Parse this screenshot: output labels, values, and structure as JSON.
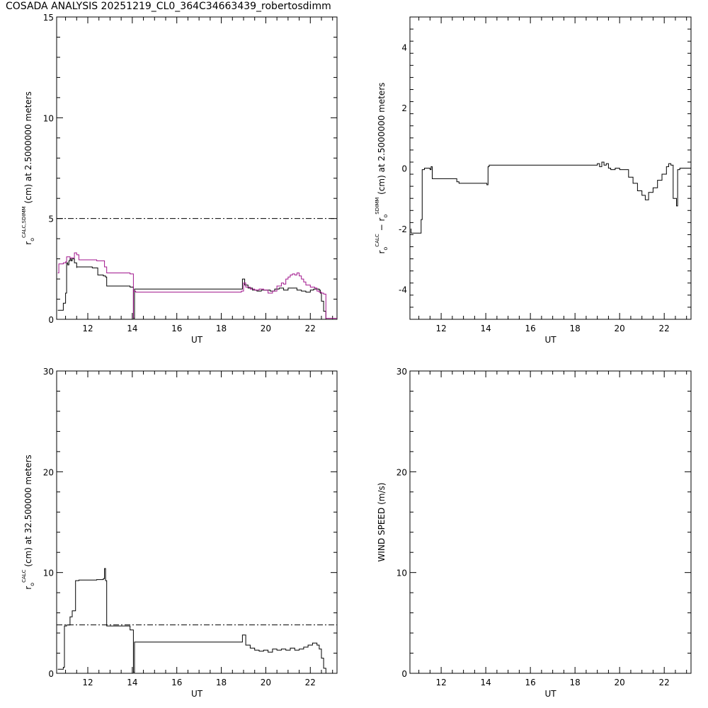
{
  "figure_title": "COSADA ANALYSIS  20251219_CL0_364C34663439_robertosdimm",
  "chart_data": [
    {
      "id": "r0-cl0-sdimm",
      "type": "line",
      "xlabel": "UT",
      "ylabel": "r₀^CALC,SDIMM (cm) at 2.5000000 meters",
      "ylabel_parts": {
        "pre": "r",
        "sub": "o",
        "sup": "CALC,SDIMM",
        "post": " (cm)  at  2.5000000 meters"
      },
      "xlim": [
        10.6,
        23.2
      ],
      "ylim": [
        0,
        15
      ],
      "xticks": [
        12,
        14,
        16,
        18,
        20,
        22
      ],
      "yticks": [
        0,
        5,
        10,
        15
      ],
      "reference_line": {
        "y": 5,
        "style": "dash-dot"
      },
      "series": [
        {
          "color": "#000000",
          "x": [
            10.65,
            10.9,
            10.9,
            11.0,
            11.0,
            11.05,
            11.1,
            11.15,
            11.2,
            11.25,
            11.3,
            11.4,
            11.5,
            11.5,
            12.2,
            12.45,
            12.7,
            12.8,
            12.85,
            13.9,
            14.05,
            14.05,
            14.1,
            18.9,
            18.95,
            19.05,
            19.2,
            19.4,
            19.6,
            19.8,
            20.0,
            20.2,
            20.4,
            20.6,
            20.8,
            21.0,
            21.2,
            21.4,
            21.6,
            21.8,
            22.0,
            22.15,
            22.3,
            22.4,
            22.45,
            22.5,
            22.6,
            22.7
          ],
          "y": [
            0.45,
            0.45,
            0.8,
            1.2,
            1.3,
            2.8,
            2.7,
            2.9,
            3.0,
            2.9,
            3.0,
            2.8,
            2.55,
            2.6,
            2.55,
            2.2,
            2.15,
            2.1,
            1.65,
            1.6,
            1.55,
            0.05,
            1.5,
            1.5,
            2.0,
            1.7,
            1.55,
            1.45,
            1.4,
            1.45,
            1.45,
            1.4,
            1.5,
            1.55,
            1.45,
            1.55,
            1.55,
            1.45,
            1.4,
            1.35,
            1.45,
            1.5,
            1.5,
            1.45,
            1.3,
            0.9,
            0.4,
            0.0
          ]
        },
        {
          "color": "#a0148c",
          "x": [
            10.65,
            10.7,
            10.9,
            11.0,
            11.05,
            11.2,
            11.4,
            11.5,
            11.6,
            12.4,
            12.75,
            12.85,
            13.9,
            14.05,
            14.05,
            14.15,
            18.9,
            19.0,
            19.1,
            19.3,
            19.5,
            19.7,
            19.9,
            20.1,
            20.3,
            20.5,
            20.7,
            20.8,
            20.9,
            21.0,
            21.1,
            21.2,
            21.3,
            21.4,
            21.5,
            21.6,
            21.7,
            21.8,
            22.0,
            22.2,
            22.3,
            22.4,
            22.5,
            22.6,
            22.7,
            23.2
          ],
          "y": [
            2.3,
            2.75,
            2.8,
            2.85,
            3.1,
            3.05,
            3.3,
            3.2,
            2.95,
            2.9,
            2.6,
            2.3,
            2.25,
            0.05,
            1.4,
            1.35,
            1.4,
            1.8,
            1.6,
            1.5,
            1.45,
            1.5,
            1.45,
            1.3,
            1.4,
            1.65,
            1.8,
            1.75,
            2.0,
            2.1,
            2.2,
            2.25,
            2.2,
            2.3,
            2.15,
            2.0,
            1.85,
            1.7,
            1.6,
            1.55,
            1.4,
            1.35,
            1.3,
            1.25,
            0.05,
            0.05
          ]
        }
      ]
    },
    {
      "id": "r0-diff",
      "type": "line",
      "xlabel": "UT",
      "ylabel": "r₀^CALC − r₀^SDIMM (cm) at 2.5000000 meters",
      "ylabel_parts": {
        "pre": "r",
        "sub": "o",
        "sup": "CALC",
        "mid": "  −  r",
        "sub2": "o",
        "sup2": "SDIMM",
        "post": " (cm) at 2.5000000 meters"
      },
      "xlim": [
        10.6,
        23.2
      ],
      "ylim": [
        -5,
        5
      ],
      "xticks": [
        12,
        14,
        16,
        18,
        20,
        22
      ],
      "yticks": [
        -4,
        -2,
        0,
        2,
        4
      ],
      "series": [
        {
          "color": "#000000",
          "x": [
            10.65,
            10.65,
            11.0,
            11.1,
            11.15,
            11.25,
            11.5,
            11.55,
            11.6,
            12.7,
            12.8,
            14.05,
            14.1,
            14.15,
            18.95,
            19.0,
            19.1,
            19.2,
            19.3,
            19.4,
            19.5,
            19.6,
            19.8,
            20.0,
            20.2,
            20.4,
            20.6,
            20.8,
            21.0,
            21.15,
            21.3,
            21.5,
            21.7,
            21.9,
            22.1,
            22.2,
            22.3,
            22.4,
            22.55,
            22.6,
            22.7,
            23.2
          ],
          "y": [
            -2.0,
            -2.15,
            -2.15,
            -1.7,
            -0.05,
            0.0,
            -0.05,
            0.05,
            -0.35,
            -0.45,
            -0.5,
            -0.55,
            0.05,
            0.1,
            0.1,
            0.15,
            0.05,
            0.2,
            0.1,
            0.15,
            0.0,
            -0.05,
            0.0,
            -0.05,
            -0.05,
            -0.3,
            -0.5,
            -0.75,
            -0.9,
            -1.05,
            -0.8,
            -0.65,
            -0.4,
            -0.2,
            0.05,
            0.15,
            0.1,
            -1.0,
            -1.25,
            -0.05,
            0.0,
            0.0
          ]
        }
      ]
    },
    {
      "id": "r0-calc-32",
      "type": "line",
      "xlabel": "UT",
      "ylabel": "r₀^CALC (cm) at 32.500000 meters",
      "ylabel_parts": {
        "pre": "r",
        "sub": "o",
        "sup": "CALC",
        "post": " (cm) at 32.500000 meters"
      },
      "xlim": [
        10.6,
        23.2
      ],
      "ylim": [
        0,
        30
      ],
      "xticks": [
        12,
        14,
        16,
        18,
        20,
        22
      ],
      "yticks": [
        0,
        10,
        20,
        30
      ],
      "reference_line": {
        "y": 4.8,
        "style": "dash-dot"
      },
      "series": [
        {
          "color": "#000000",
          "x": [
            10.65,
            10.9,
            10.95,
            11.05,
            11.2,
            11.3,
            11.45,
            11.6,
            12.4,
            12.7,
            12.75,
            12.8,
            12.85,
            13.9,
            14.05,
            14.05,
            14.1,
            18.9,
            18.95,
            19.1,
            19.3,
            19.5,
            19.7,
            19.9,
            20.1,
            20.3,
            20.5,
            20.7,
            20.9,
            21.1,
            21.3,
            21.5,
            21.7,
            21.9,
            22.1,
            22.3,
            22.4,
            22.5,
            22.6,
            22.7
          ],
          "y": [
            0.4,
            0.6,
            4.7,
            4.8,
            5.6,
            6.2,
            9.2,
            9.25,
            9.3,
            9.4,
            10.4,
            9.2,
            4.7,
            4.3,
            4.1,
            0.1,
            3.1,
            3.1,
            3.8,
            2.8,
            2.5,
            2.3,
            2.2,
            2.3,
            2.1,
            2.4,
            2.3,
            2.4,
            2.3,
            2.5,
            2.3,
            2.4,
            2.6,
            2.8,
            3.0,
            2.8,
            2.4,
            1.5,
            0.5,
            0.0
          ]
        }
      ]
    },
    {
      "id": "wind-speed",
      "type": "line",
      "xlabel": "UT",
      "ylabel": "WIND SPEED (m/s)",
      "ylabel_parts": {
        "post": "WIND SPEED (m/s)"
      },
      "xlim": [
        10.6,
        23.2
      ],
      "ylim": [
        0,
        30
      ],
      "xticks": [
        12,
        14,
        16,
        18,
        20,
        22
      ],
      "yticks": [
        0,
        10,
        20,
        30
      ],
      "series": []
    }
  ]
}
